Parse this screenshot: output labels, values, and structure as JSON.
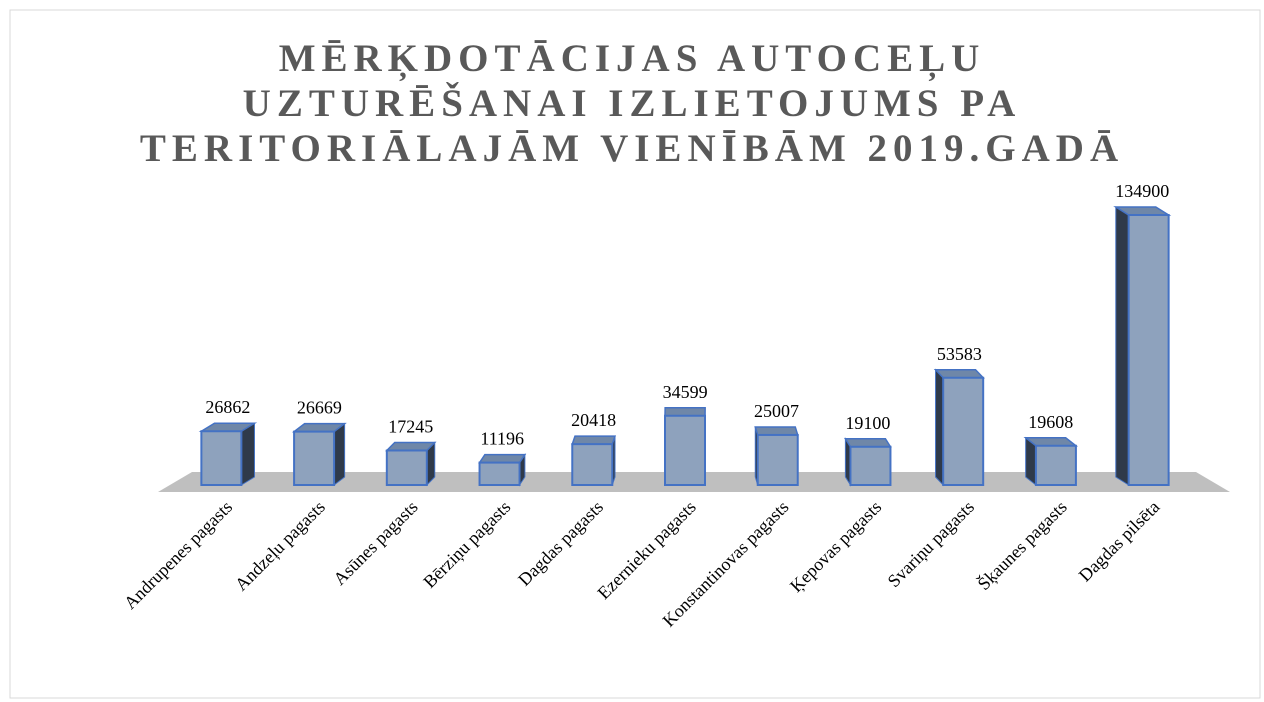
{
  "chart_data": {
    "type": "bar3d",
    "title": "MĒRĶDOTĀCIJAS AUTOCEĻU UZTURĒŠANAI IZLIETOJUMS PA TERITORIĀLAJĀM VIENĪBĀM 2019.GADĀ",
    "categories": [
      "Andrupenes pagasts",
      "Andzeļu pagasts",
      "Asūnes pagasts",
      "Bērziņu pagasts",
      "Dagdas pagasts",
      "Ezernieku pagasts",
      "Konstantinovas pagasts",
      "Ķepovas pagasts",
      "Svariņu pagasts",
      "Šķaunes pagasts",
      "Dagdas pilsēta"
    ],
    "values": [
      26862,
      26669,
      17245,
      11196,
      20418,
      34599,
      25007,
      19100,
      53583,
      19608,
      134900
    ],
    "color": "#8ea2bd"
  }
}
